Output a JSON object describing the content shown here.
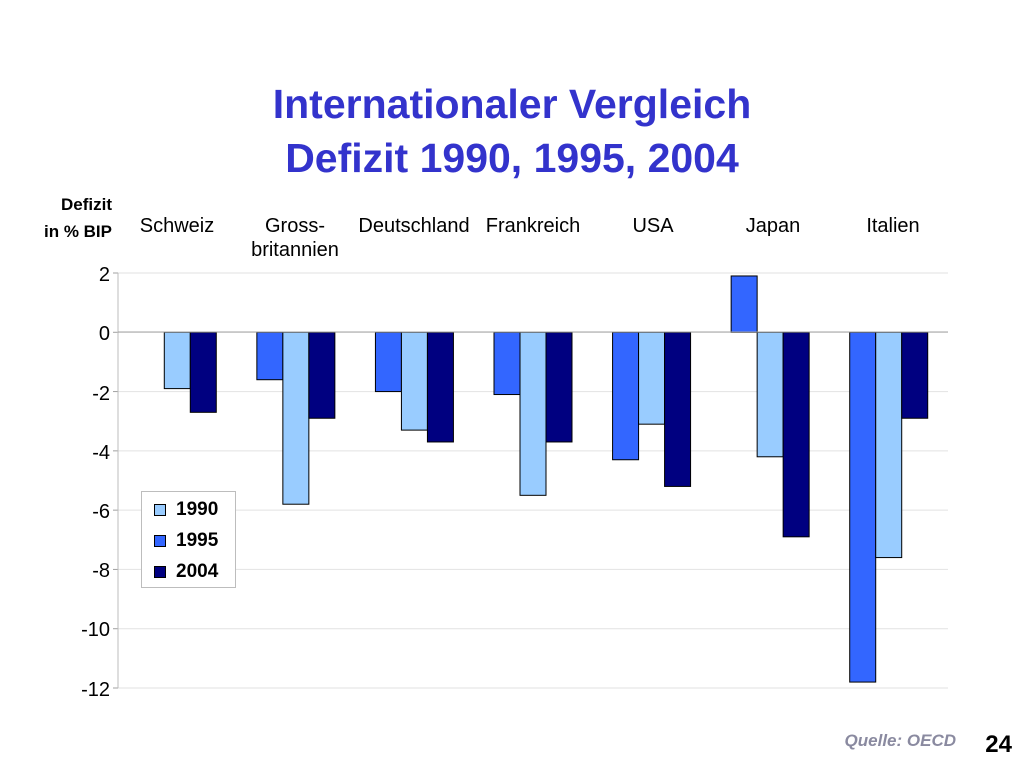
{
  "title_line1": "Internationaler Vergleich",
  "title_line2": "Defizit 1990, 1995, 2004",
  "ylabel_line1": "Defizit",
  "ylabel_line2": "in % BIP",
  "source": "Quelle: OECD",
  "page_number": "24",
  "chart_data": {
    "type": "bar",
    "categories": [
      "Schweiz",
      "Gross-\nbritannien",
      "Deutschland",
      "Frankreich",
      "USA",
      "Japan",
      "Italien"
    ],
    "series": [
      {
        "name": "1990",
        "color": "#99ccff",
        "values": [
          -1.9,
          -5.8,
          -3.3,
          -5.5,
          -3.1,
          -4.2,
          -7.6
        ]
      },
      {
        "name": "1995",
        "color": "#3366ff",
        "values": [
          null,
          -1.6,
          -2.0,
          -2.1,
          -4.3,
          1.9,
          -11.8
        ]
      },
      {
        "name": "2004",
        "color": "#000080",
        "values": [
          -2.7,
          -2.9,
          -3.7,
          -3.7,
          -5.2,
          -6.9,
          -2.9
        ]
      }
    ],
    "bar_order": [
      "1995",
      "1990",
      "2004"
    ],
    "yticks": [
      "2",
      "0",
      "-2",
      "-4",
      "-6",
      "-8",
      "-10",
      "-12"
    ],
    "ylim": [
      -12,
      2
    ],
    "grid": true,
    "legend_position": "lower-left"
  }
}
